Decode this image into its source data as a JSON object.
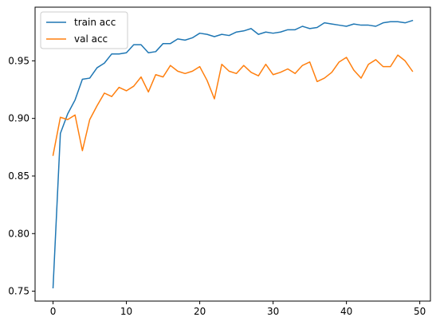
{
  "chart_data": {
    "type": "line",
    "x": [
      0,
      1,
      2,
      3,
      4,
      5,
      6,
      7,
      8,
      9,
      10,
      11,
      12,
      13,
      14,
      15,
      16,
      17,
      18,
      19,
      20,
      21,
      22,
      23,
      24,
      25,
      26,
      27,
      28,
      29,
      30,
      31,
      32,
      33,
      34,
      35,
      36,
      37,
      38,
      39,
      40,
      41,
      42,
      43,
      44,
      45,
      46,
      47,
      48,
      49
    ],
    "series": [
      {
        "name": "train acc",
        "color": "#1f77b4",
        "values": [
          0.753,
          0.887,
          0.904,
          0.916,
          0.934,
          0.935,
          0.944,
          0.948,
          0.956,
          0.956,
          0.957,
          0.964,
          0.964,
          0.957,
          0.958,
          0.965,
          0.965,
          0.969,
          0.968,
          0.97,
          0.974,
          0.973,
          0.971,
          0.973,
          0.972,
          0.975,
          0.976,
          0.978,
          0.973,
          0.975,
          0.974,
          0.975,
          0.977,
          0.977,
          0.98,
          0.978,
          0.979,
          0.983,
          0.982,
          0.981,
          0.98,
          0.982,
          0.981,
          0.981,
          0.98,
          0.983,
          0.984,
          0.984,
          0.983,
          0.985
        ]
      },
      {
        "name": "val acc",
        "color": "#ff7f0e",
        "values": [
          0.868,
          0.901,
          0.899,
          0.903,
          0.872,
          0.899,
          0.911,
          0.922,
          0.919,
          0.927,
          0.924,
          0.928,
          0.936,
          0.923,
          0.938,
          0.936,
          0.946,
          0.941,
          0.939,
          0.941,
          0.945,
          0.933,
          0.917,
          0.947,
          0.941,
          0.939,
          0.946,
          0.94,
          0.937,
          0.947,
          0.938,
          0.94,
          0.943,
          0.939,
          0.946,
          0.949,
          0.932,
          0.935,
          0.94,
          0.949,
          0.953,
          0.942,
          0.935,
          0.947,
          0.951,
          0.945,
          0.945,
          0.955,
          0.95,
          0.941
        ]
      }
    ],
    "xlim": [
      -2.45,
      51.45
    ],
    "ylim": [
      0.7414,
      0.9966
    ],
    "x_ticks": [
      0,
      10,
      20,
      30,
      40,
      50
    ],
    "y_ticks": [
      0.75,
      0.8,
      0.85,
      0.9,
      0.95
    ],
    "x_tick_labels": [
      "0",
      "10",
      "20",
      "30",
      "40",
      "50"
    ],
    "y_tick_labels": [
      "0.75",
      "0.80",
      "0.85",
      "0.90",
      "0.95"
    ],
    "title": "",
    "xlabel": "",
    "ylabel": "",
    "grid": false,
    "legend_position": "upper-left"
  }
}
